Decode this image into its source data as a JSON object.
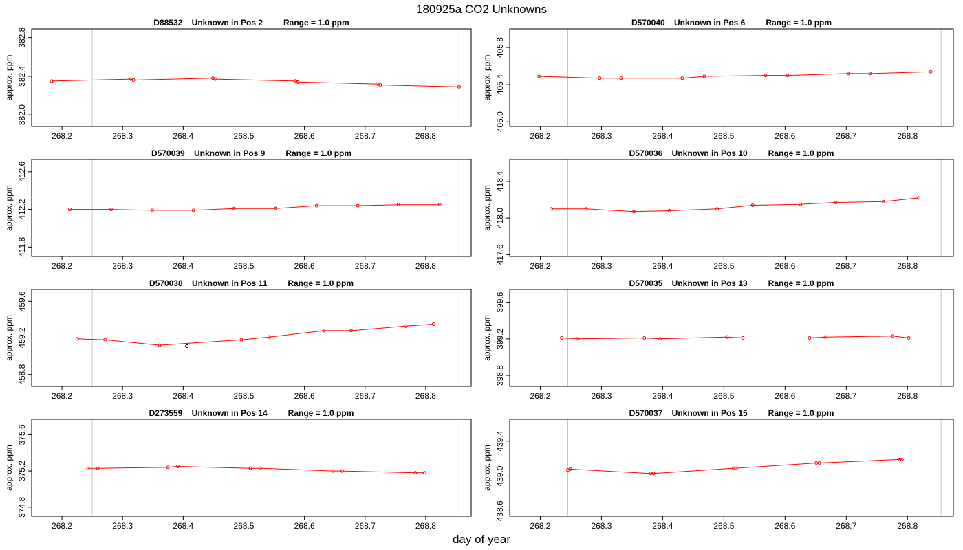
{
  "figure": {
    "title": "180925a  CO2 Unknowns",
    "xlabel": "day of year"
  },
  "chart_data": [
    {
      "type": "line",
      "title": "D88532    Unknown in Pos 2         Range = 1.0 ppm",
      "xlabel": "day of year",
      "ylabel": "approx. ppm",
      "xlim": [
        268.15,
        268.875
      ],
      "ylim": [
        381.88,
        382.89
      ],
      "xticks": [
        "268.2",
        "268.3",
        "268.4",
        "268.5",
        "268.6",
        "268.7",
        "268.8"
      ],
      "yticks": [
        "382.0",
        "382.4",
        "382.8"
      ],
      "vlines": [
        268.25,
        268.855
      ],
      "series": [
        {
          "color": "#ff0000",
          "x": [
            268.183,
            268.314,
            268.318,
            268.449,
            268.453,
            268.585,
            268.589,
            268.72,
            268.725,
            268.855
          ],
          "y": [
            382.35,
            382.37,
            382.36,
            382.38,
            382.37,
            382.35,
            382.34,
            382.32,
            382.31,
            382.29
          ]
        }
      ]
    },
    {
      "type": "line",
      "title": "D570040    Unknown in Pos 6         Range = 1.0 ppm",
      "xlabel": "day of year",
      "ylabel": "approx. ppm",
      "xlim": [
        268.15,
        268.875
      ],
      "ylim": [
        404.95,
        406.0
      ],
      "xticks": [
        "268.2",
        "268.3",
        "268.4",
        "268.5",
        "268.6",
        "268.7",
        "268.8"
      ],
      "yticks": [
        "405.0",
        "405.4",
        "405.8"
      ],
      "vlines": [
        268.245,
        268.855
      ],
      "series": [
        {
          "color": "#ff0000",
          "x": [
            268.198,
            268.297,
            268.332,
            268.432,
            268.468,
            268.568,
            268.604,
            268.703,
            268.739,
            268.838
          ],
          "y": [
            405.49,
            405.47,
            405.47,
            405.47,
            405.49,
            405.5,
            405.5,
            405.52,
            405.52,
            405.54
          ]
        }
      ]
    },
    {
      "type": "line",
      "title": "D570039    Unknown in Pos 9         Range = 1.0 ppm",
      "xlabel": "day of year",
      "ylabel": "approx. ppm",
      "xlim": [
        268.15,
        268.875
      ],
      "ylim": [
        411.7,
        412.73
      ],
      "xticks": [
        "268.2",
        "268.3",
        "268.4",
        "268.5",
        "268.6",
        "268.7",
        "268.8"
      ],
      "yticks": [
        "411.8",
        "412.2",
        "412.6"
      ],
      "vlines": [
        268.25,
        268.855
      ],
      "series": [
        {
          "color": "#ff0000",
          "x": [
            268.213,
            268.281,
            268.349,
            268.417,
            268.484,
            268.552,
            268.62,
            268.688,
            268.755,
            268.823
          ],
          "y": [
            412.2,
            412.2,
            412.19,
            412.19,
            412.21,
            412.21,
            412.24,
            412.24,
            412.25,
            412.25
          ]
        }
      ]
    },
    {
      "type": "line",
      "title": "D570036    Unknown in Pos 10         Range = 1.0 ppm",
      "xlabel": "day of year",
      "ylabel": "approx. ppm",
      "xlim": [
        268.15,
        268.875
      ],
      "ylim": [
        417.58,
        418.64
      ],
      "xticks": [
        "268.2",
        "268.3",
        "268.4",
        "268.5",
        "268.6",
        "268.7",
        "268.8"
      ],
      "yticks": [
        "417.6",
        "418.0",
        "418.4"
      ],
      "vlines": [
        268.245,
        268.855
      ],
      "series": [
        {
          "color": "#ff0000",
          "x": [
            268.218,
            268.275,
            268.353,
            268.411,
            268.489,
            268.547,
            268.625,
            268.683,
            268.761,
            268.818
          ],
          "y": [
            418.1,
            418.1,
            418.07,
            418.08,
            418.1,
            418.14,
            418.15,
            418.17,
            418.18,
            418.22
          ]
        }
      ]
    },
    {
      "type": "line",
      "title": "D570038    Unknown in Pos 11         Range = 1.0 ppm",
      "xlabel": "day of year",
      "ylabel": "approx. ppm",
      "xlim": [
        268.15,
        268.875
      ],
      "ylim": [
        458.67,
        459.73
      ],
      "xticks": [
        "268.2",
        "268.3",
        "268.4",
        "268.5",
        "268.6",
        "268.7",
        "268.8"
      ],
      "yticks": [
        "458.8",
        "459.2",
        "459.6"
      ],
      "vlines": [
        268.25,
        268.855
      ],
      "series": [
        {
          "color": "#ff0000",
          "x": [
            268.225,
            268.271,
            268.361,
            268.496,
            268.542,
            268.632,
            268.677,
            268.767,
            268.813
          ],
          "y": [
            459.19,
            459.18,
            459.12,
            459.18,
            459.21,
            459.28,
            459.28,
            459.33,
            459.35
          ]
        }
      ],
      "outliers": [
        {
          "x": 268.406,
          "y": 459.11,
          "color": "#000000"
        }
      ]
    },
    {
      "type": "line",
      "title": "D570035    Unknown in Pos 13         Range = 1.0 ppm",
      "xlabel": "day of year",
      "ylabel": "approx. ppm",
      "xlim": [
        268.15,
        268.875
      ],
      "ylim": [
        398.68,
        399.74
      ],
      "xticks": [
        "268.2",
        "268.3",
        "268.4",
        "268.5",
        "268.6",
        "268.7",
        "268.8"
      ],
      "yticks": [
        "398.8",
        "399.2",
        "399.6"
      ],
      "vlines": [
        268.245,
        268.855
      ],
      "series": [
        {
          "color": "#ff0000",
          "x": [
            268.235,
            268.261,
            268.37,
            268.396,
            268.505,
            268.531,
            268.64,
            268.666,
            268.776,
            268.802
          ],
          "y": [
            399.21,
            399.2,
            399.21,
            399.2,
            399.22,
            399.21,
            399.21,
            399.22,
            399.23,
            399.21
          ]
        }
      ]
    },
    {
      "type": "line",
      "title": "D273559    Unknown in Pos 14         Range = 1.0 ppm",
      "xlabel": "day of year",
      "ylabel": "approx. ppm",
      "xlim": [
        268.15,
        268.875
      ],
      "ylim": [
        374.7,
        375.77
      ],
      "xticks": [
        "268.2",
        "268.3",
        "268.4",
        "268.5",
        "268.6",
        "268.7",
        "268.8"
      ],
      "yticks": [
        "374.8",
        "375.2",
        "375.6"
      ],
      "vlines": [
        268.25,
        268.855
      ],
      "series": [
        {
          "color": "#ff0000",
          "x": [
            268.243,
            268.259,
            268.375,
            268.391,
            268.511,
            268.527,
            268.647,
            268.662,
            268.783,
            268.798
          ],
          "y": [
            375.23,
            375.23,
            375.24,
            375.25,
            375.23,
            375.23,
            375.2,
            375.2,
            375.18,
            375.18
          ]
        }
      ]
    },
    {
      "type": "line",
      "title": "D570037    Unknown in Pos 15         Range = 1.0 ppm",
      "xlabel": "day of year",
      "ylabel": "approx. ppm",
      "xlim": [
        268.15,
        268.875
      ],
      "ylim": [
        438.54,
        439.65
      ],
      "xticks": [
        "268.2",
        "268.3",
        "268.4",
        "268.5",
        "268.6",
        "268.7",
        "268.8"
      ],
      "yticks": [
        "438.6",
        "439.0",
        "439.4"
      ],
      "vlines": [
        268.245,
        268.855
      ],
      "series": [
        {
          "color": "#ff0000",
          "x": [
            268.245,
            268.249,
            268.38,
            268.385,
            268.516,
            268.52,
            268.651,
            268.656,
            268.787,
            268.791
          ],
          "y": [
            439.07,
            439.08,
            439.03,
            439.03,
            439.09,
            439.09,
            439.15,
            439.15,
            439.19,
            439.19
          ]
        }
      ]
    }
  ]
}
